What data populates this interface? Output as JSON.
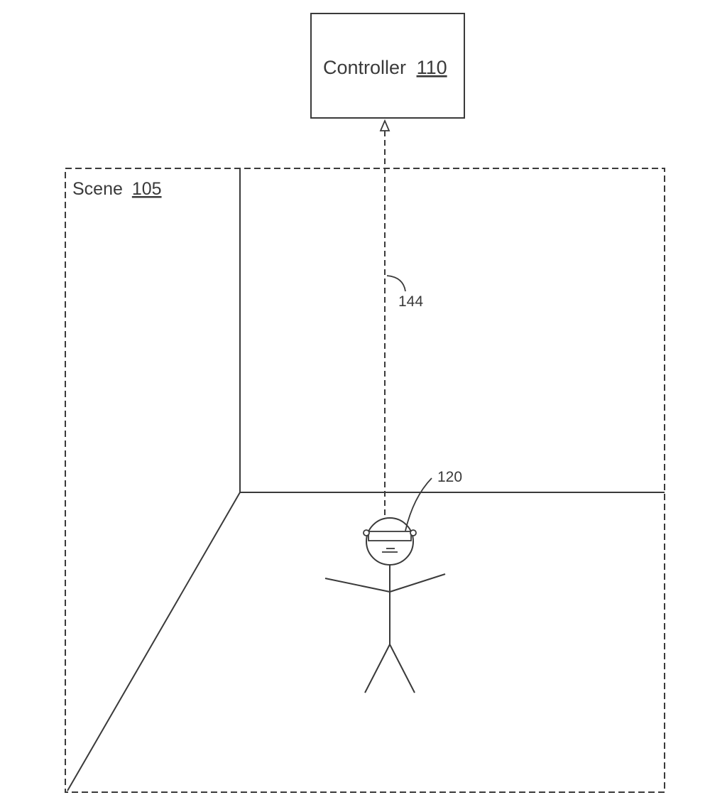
{
  "controller": {
    "label": "Controller",
    "ref": "110"
  },
  "scene": {
    "label": "Scene",
    "ref": "105"
  },
  "link": {
    "ref": "144"
  },
  "headset": {
    "ref": "120"
  },
  "colors": {
    "ink": "#3a3a3a",
    "background": "#ffffff"
  }
}
